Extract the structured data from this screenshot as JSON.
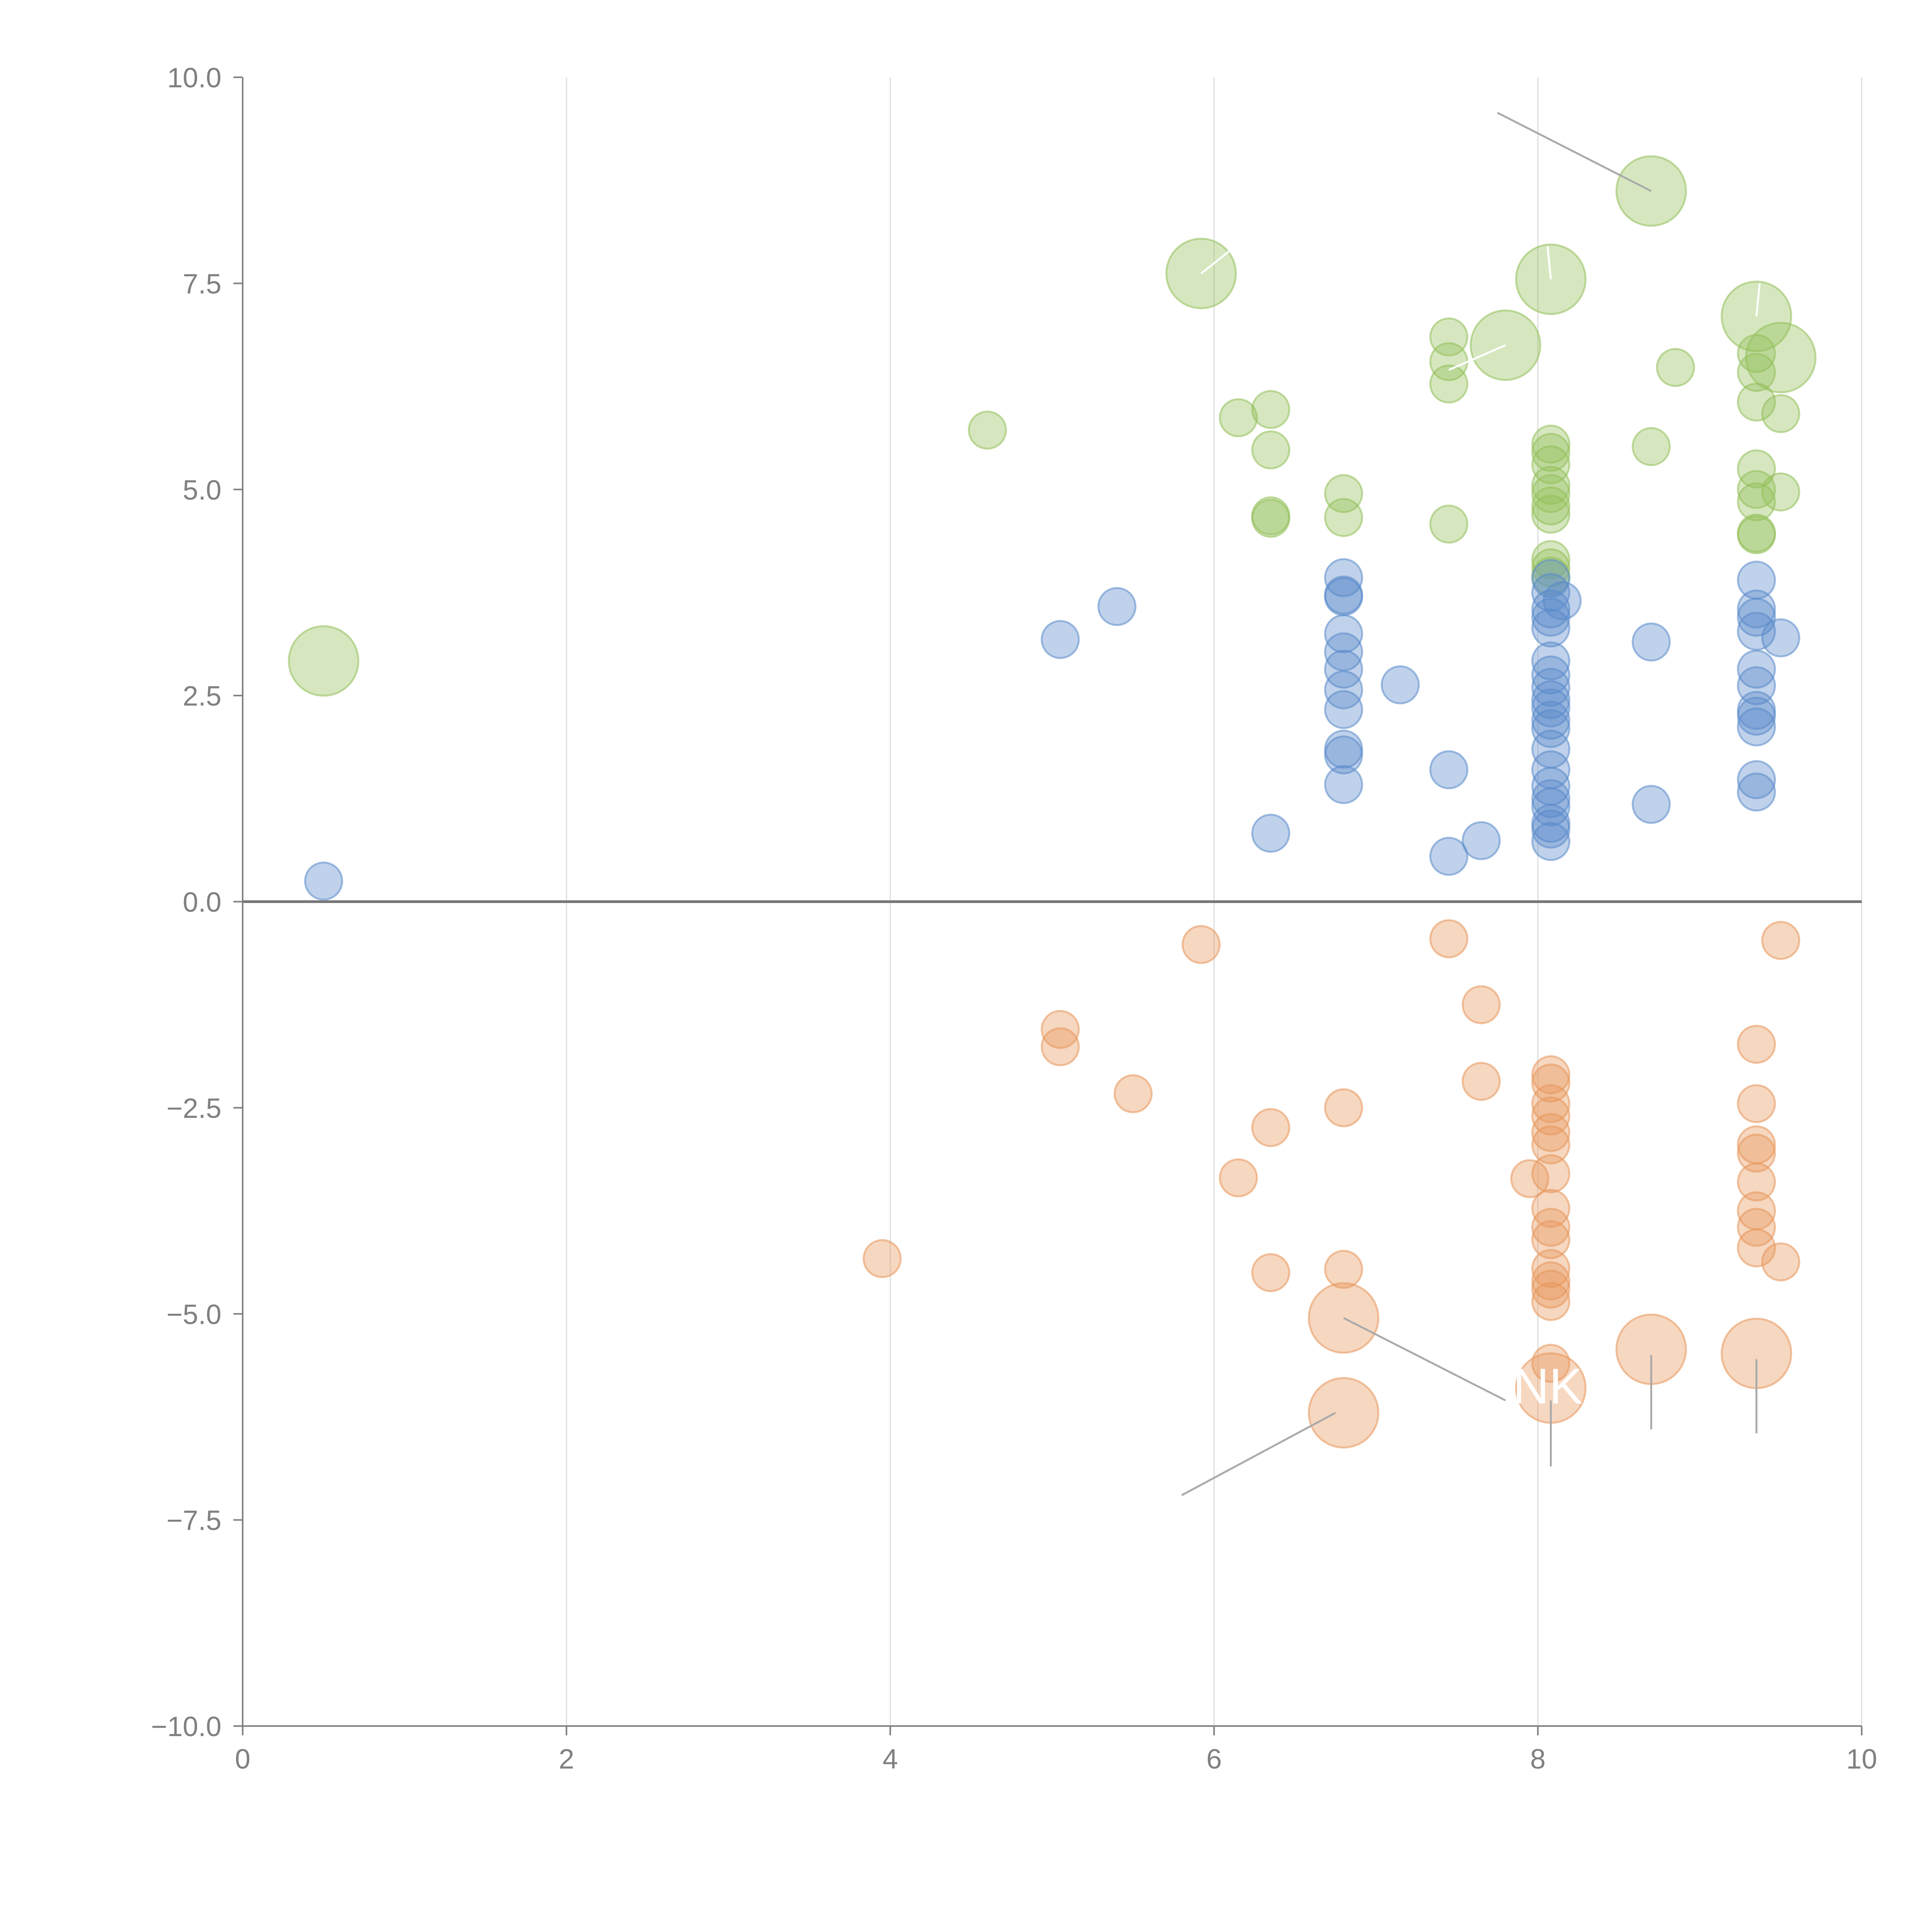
{
  "chart_data": {
    "type": "scatter",
    "title": "",
    "xlabel": "",
    "ylabel": "",
    "xlim": [
      0,
      10
    ],
    "ylim": [
      -10,
      10
    ],
    "xticks": [
      0,
      2,
      4,
      6,
      8,
      10
    ],
    "yticks": [
      -10,
      -7.5,
      -5,
      -2.5,
      0,
      2.5,
      5,
      7.5,
      10
    ],
    "x_tick_labels": [
      "0",
      "2",
      "4",
      "6",
      "8",
      "10"
    ],
    "y_tick_labels": [
      "−10.0",
      "−7.5",
      "−5.0",
      "−2.5",
      "0.0",
      "2.5",
      "5.0",
      "7.5",
      "10.0"
    ],
    "grid": "vertical",
    "zero_line": true,
    "size_legend": {
      "small": 1,
      "large": 3
    },
    "series": [
      {
        "name": "green",
        "color": "#93bf5a",
        "points": [
          [
            0.5,
            2.92,
            3
          ],
          [
            4.6,
            5.72,
            1
          ],
          [
            5.92,
            7.62,
            3
          ],
          [
            6.15,
            5.87,
            1
          ],
          [
            6.35,
            5.97,
            1
          ],
          [
            6.35,
            5.48,
            1
          ],
          [
            6.35,
            4.65,
            1
          ],
          [
            6.35,
            4.68,
            1
          ],
          [
            6.8,
            4.95,
            1
          ],
          [
            6.8,
            4.66,
            1
          ],
          [
            7.45,
            6.85,
            1
          ],
          [
            7.45,
            6.55,
            1
          ],
          [
            7.45,
            6.28,
            1
          ],
          [
            7.45,
            4.58,
            1
          ],
          [
            7.8,
            6.75,
            3
          ],
          [
            8.08,
            7.55,
            3
          ],
          [
            8.08,
            5.55,
            1
          ],
          [
            8.08,
            5.45,
            1
          ],
          [
            8.08,
            5.3,
            1
          ],
          [
            8.08,
            5.05,
            1
          ],
          [
            8.08,
            4.95,
            1
          ],
          [
            8.08,
            4.8,
            1
          ],
          [
            8.08,
            4.7,
            1
          ],
          [
            8.08,
            4.15,
            1
          ],
          [
            8.08,
            4.05,
            1
          ],
          [
            8.08,
            3.95,
            1
          ],
          [
            8.7,
            8.62,
            3
          ],
          [
            8.7,
            5.52,
            1
          ],
          [
            8.85,
            6.48,
            1
          ],
          [
            9.35,
            7.1,
            3
          ],
          [
            9.35,
            6.65,
            1
          ],
          [
            9.35,
            6.42,
            1
          ],
          [
            9.35,
            6.06,
            1
          ],
          [
            9.35,
            5.25,
            1
          ],
          [
            9.35,
            5.0,
            1
          ],
          [
            9.35,
            4.85,
            1
          ],
          [
            9.35,
            4.47,
            1
          ],
          [
            9.35,
            4.45,
            1
          ],
          [
            9.5,
            6.6,
            3
          ],
          [
            9.5,
            5.92,
            1
          ],
          [
            9.5,
            4.97,
            1
          ]
        ]
      },
      {
        "name": "blue",
        "color": "#5a8acb",
        "points": [
          [
            0.5,
            0.25,
            1
          ],
          [
            5.05,
            3.18,
            1
          ],
          [
            5.4,
            3.58,
            1
          ],
          [
            6.35,
            0.83,
            1
          ],
          [
            6.8,
            3.93,
            1
          ],
          [
            6.8,
            3.72,
            1
          ],
          [
            6.8,
            3.7,
            1
          ],
          [
            6.8,
            3.25,
            1
          ],
          [
            6.8,
            3.03,
            1
          ],
          [
            6.8,
            2.82,
            1
          ],
          [
            6.8,
            2.57,
            1
          ],
          [
            6.8,
            2.33,
            1
          ],
          [
            6.8,
            1.85,
            1
          ],
          [
            6.8,
            1.78,
            1
          ],
          [
            6.8,
            1.42,
            1
          ],
          [
            7.15,
            2.63,
            1
          ],
          [
            7.45,
            1.6,
            1
          ],
          [
            7.45,
            0.55,
            1
          ],
          [
            7.65,
            0.74,
            1
          ],
          [
            8.08,
            3.92,
            1
          ],
          [
            8.08,
            3.75,
            1
          ],
          [
            8.08,
            3.55,
            1
          ],
          [
            8.08,
            3.45,
            1
          ],
          [
            8.08,
            3.32,
            1
          ],
          [
            8.08,
            2.92,
            1
          ],
          [
            8.08,
            2.75,
            1
          ],
          [
            8.08,
            2.6,
            1
          ],
          [
            8.08,
            2.45,
            1
          ],
          [
            8.08,
            2.35,
            1
          ],
          [
            8.08,
            2.2,
            1
          ],
          [
            8.08,
            2.1,
            1
          ],
          [
            8.08,
            1.85,
            1
          ],
          [
            8.08,
            1.6,
            1
          ],
          [
            8.08,
            1.4,
            1
          ],
          [
            8.08,
            1.25,
            1
          ],
          [
            8.08,
            1.15,
            1
          ],
          [
            8.08,
            0.95,
            1
          ],
          [
            8.08,
            0.88,
            1
          ],
          [
            8.08,
            0.73,
            1
          ],
          [
            8.15,
            3.65,
            1
          ],
          [
            8.7,
            3.15,
            1
          ],
          [
            8.7,
            1.18,
            1
          ],
          [
            9.35,
            3.9,
            1
          ],
          [
            9.35,
            3.55,
            1
          ],
          [
            9.35,
            3.45,
            1
          ],
          [
            9.35,
            3.28,
            1
          ],
          [
            9.35,
            2.82,
            1
          ],
          [
            9.35,
            2.62,
            1
          ],
          [
            9.35,
            2.32,
            1
          ],
          [
            9.35,
            2.25,
            1
          ],
          [
            9.35,
            2.12,
            1
          ],
          [
            9.35,
            1.48,
            1
          ],
          [
            9.35,
            1.33,
            1
          ],
          [
            9.5,
            3.2,
            1
          ]
        ]
      },
      {
        "name": "orange",
        "color": "#e8955a",
        "points": [
          [
            3.95,
            -4.33,
            1
          ],
          [
            5.05,
            -1.55,
            1
          ],
          [
            5.05,
            -1.76,
            1
          ],
          [
            5.5,
            -2.33,
            1
          ],
          [
            5.92,
            -0.52,
            1
          ],
          [
            6.15,
            -3.35,
            1
          ],
          [
            6.35,
            -2.74,
            1
          ],
          [
            6.35,
            -4.5,
            1
          ],
          [
            6.8,
            -2.5,
            1
          ],
          [
            6.8,
            -4.46,
            1
          ],
          [
            6.8,
            -5.05,
            3
          ],
          [
            6.8,
            -6.2,
            3
          ],
          [
            7.45,
            -0.45,
            1
          ],
          [
            7.65,
            -1.25,
            1
          ],
          [
            7.65,
            -2.18,
            1
          ],
          [
            7.95,
            -3.36,
            1
          ],
          [
            8.08,
            -2.1,
            1
          ],
          [
            8.08,
            -2.2,
            1
          ],
          [
            8.08,
            -2.45,
            1
          ],
          [
            8.08,
            -2.6,
            1
          ],
          [
            8.08,
            -2.8,
            1
          ],
          [
            8.08,
            -2.95,
            1
          ],
          [
            8.08,
            -3.3,
            1
          ],
          [
            8.08,
            -3.72,
            1
          ],
          [
            8.08,
            -3.95,
            1
          ],
          [
            8.08,
            -4.1,
            1
          ],
          [
            8.08,
            -4.45,
            1
          ],
          [
            8.08,
            -4.6,
            1
          ],
          [
            8.08,
            -4.7,
            1
          ],
          [
            8.08,
            -4.85,
            1
          ],
          [
            8.08,
            -5.6,
            1
          ],
          [
            8.08,
            -5.9,
            3
          ],
          [
            8.7,
            -5.43,
            3
          ],
          [
            9.35,
            -1.73,
            1
          ],
          [
            9.35,
            -2.45,
            1
          ],
          [
            9.35,
            -2.95,
            1
          ],
          [
            9.35,
            -3.05,
            1
          ],
          [
            9.35,
            -3.4,
            1
          ],
          [
            9.35,
            -3.75,
            1
          ],
          [
            9.35,
            -3.95,
            1
          ],
          [
            9.35,
            -4.2,
            1
          ],
          [
            9.35,
            -5.48,
            3
          ],
          [
            9.5,
            -0.47,
            1
          ],
          [
            9.5,
            -4.37,
            1
          ]
        ]
      }
    ],
    "annotations": [
      {
        "text": "NKI",
        "x": 8.08,
        "y": -5.9,
        "series": "orange"
      }
    ],
    "leader_lines": [
      {
        "from": [
          6.8,
          -5.05
        ],
        "to": [
          7.8,
          -6.05
        ],
        "color": "#aaaaaa"
      },
      {
        "from": [
          6.75,
          -6.2
        ],
        "to": [
          5.8,
          -7.2
        ],
        "color": "#aaaaaa"
      },
      {
        "from": [
          8.08,
          -6.05
        ],
        "to": [
          8.08,
          -6.85
        ],
        "color": "#aaaaaa"
      },
      {
        "from": [
          8.7,
          -5.5
        ],
        "to": [
          8.7,
          -6.4
        ],
        "color": "#aaaaaa"
      },
      {
        "from": [
          9.35,
          -5.55
        ],
        "to": [
          9.35,
          -6.45
        ],
        "color": "#aaaaaa"
      },
      {
        "from": [
          8.7,
          8.62
        ],
        "to": [
          7.75,
          9.57
        ],
        "color": "#aaaaaa"
      },
      {
        "from": [
          5.92,
          7.62
        ],
        "to": [
          6.1,
          7.9
        ],
        "color": "#ffffff"
      },
      {
        "from": [
          8.08,
          7.55
        ],
        "to": [
          8.06,
          7.95
        ],
        "color": "#ffffff"
      },
      {
        "from": [
          7.8,
          6.75
        ],
        "to": [
          7.45,
          6.45
        ],
        "color": "#ffffff"
      },
      {
        "from": [
          9.35,
          7.1
        ],
        "to": [
          9.37,
          7.5
        ],
        "color": "#ffffff"
      }
    ]
  }
}
